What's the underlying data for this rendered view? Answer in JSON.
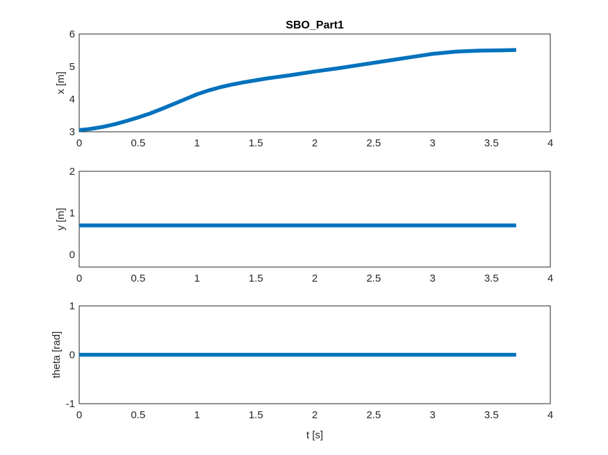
{
  "chart_data": [
    {
      "type": "line",
      "title": "SBO_Part1",
      "xlabel": "",
      "ylabel": "x [m]",
      "xlim": [
        0,
        4
      ],
      "ylim": [
        3,
        6
      ],
      "xticks": [
        "0",
        "0.5",
        "1",
        "1.5",
        "2",
        "2.5",
        "3",
        "3.5",
        "4"
      ],
      "yticks": [
        "3",
        "4",
        "5",
        "6"
      ],
      "grid": true,
      "line_color": "#0072BD",
      "series": [
        {
          "x": [
            0,
            0.1,
            0.2,
            0.3,
            0.4,
            0.5,
            0.6,
            0.7,
            0.8,
            0.9,
            1.0,
            1.1,
            1.2,
            1.3,
            1.4,
            1.5,
            1.6,
            1.8,
            2.0,
            2.2,
            2.4,
            2.6,
            2.8,
            3.0,
            3.2,
            3.4,
            3.6,
            3.71
          ],
          "y": [
            3.05,
            3.09,
            3.15,
            3.23,
            3.33,
            3.44,
            3.56,
            3.7,
            3.85,
            4.0,
            4.15,
            4.27,
            4.37,
            4.45,
            4.52,
            4.58,
            4.64,
            4.74,
            4.85,
            4.95,
            5.06,
            5.17,
            5.28,
            5.39,
            5.46,
            5.49,
            5.5,
            5.51
          ]
        }
      ]
    },
    {
      "type": "line",
      "title": "",
      "xlabel": "",
      "ylabel": "y [m]",
      "xlim": [
        0,
        4
      ],
      "ylim": [
        -0.3,
        2
      ],
      "xticks": [
        "0",
        "0.5",
        "1",
        "1.5",
        "2",
        "2.5",
        "3",
        "3.5",
        "4"
      ],
      "yticks": [
        "0",
        "1",
        "2"
      ],
      "ytick_values": [
        0,
        1,
        2
      ],
      "grid": true,
      "line_color": "#0072BD",
      "series": [
        {
          "x": [
            0,
            3.71
          ],
          "y": [
            0.7,
            0.7
          ]
        }
      ]
    },
    {
      "type": "line",
      "title": "",
      "xlabel": "t [s]",
      "ylabel": "theta [rad]",
      "xlim": [
        0,
        4
      ],
      "ylim": [
        -1,
        1
      ],
      "xticks": [
        "0",
        "0.5",
        "1",
        "1.5",
        "2",
        "2.5",
        "3",
        "3.5",
        "4"
      ],
      "yticks": [
        "-1",
        "0",
        "1"
      ],
      "grid": true,
      "line_color": "#0072BD",
      "series": [
        {
          "x": [
            0,
            3.71
          ],
          "y": [
            0,
            0
          ]
        }
      ]
    }
  ]
}
